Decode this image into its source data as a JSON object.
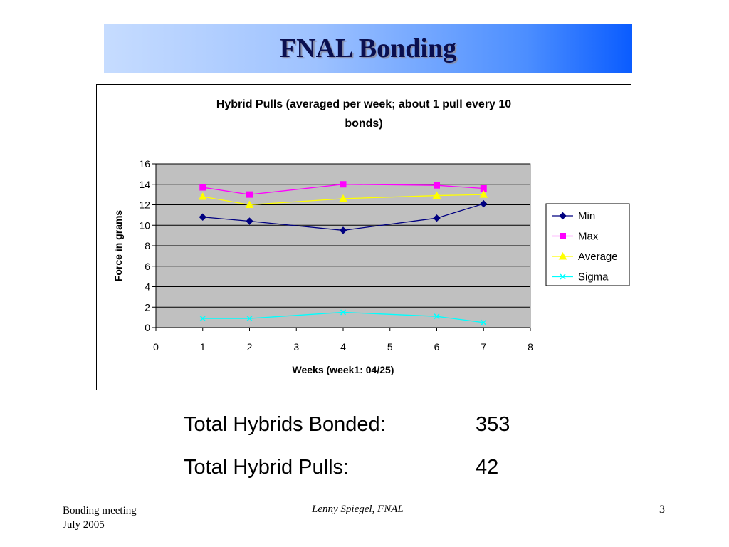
{
  "slide": {
    "title": "FNAL Bonding"
  },
  "stats": [
    {
      "label": "Total Hybrids Bonded:",
      "value": "353"
    },
    {
      "label": "Total Hybrid Pulls:",
      "value": "42"
    }
  ],
  "footer": {
    "left_line1": "Bonding meeting",
    "left_line2": "July 2005",
    "center": "Lenny Spiegel, FNAL",
    "page_number": "3"
  },
  "chart_data": {
    "type": "line",
    "title_line1": "Hybrid Pulls (averaged per week; about 1 pull every 10",
    "title_line2": "bonds)",
    "xlabel": "Weeks (week1: 04/25)",
    "ylabel": "Force in grams",
    "xlim": [
      0,
      8
    ],
    "ylim": [
      0,
      16
    ],
    "xticks": [
      0,
      1,
      2,
      3,
      4,
      5,
      6,
      7,
      8
    ],
    "yticks": [
      0,
      2,
      4,
      6,
      8,
      10,
      12,
      14,
      16
    ],
    "grid": "horizontal",
    "plot_background": "#c0c0c0",
    "legend_position": "right",
    "x": [
      1,
      2,
      4,
      6,
      7
    ],
    "series": [
      {
        "name": "Min",
        "values": [
          10.8,
          10.4,
          9.5,
          10.7,
          12.1
        ],
        "color": "#000080",
        "marker": "diamond"
      },
      {
        "name": "Max",
        "values": [
          13.7,
          13.0,
          14.0,
          13.9,
          13.6
        ],
        "color": "#ff00ff",
        "marker": "square"
      },
      {
        "name": "Average",
        "values": [
          12.8,
          12.0,
          12.6,
          12.9,
          13.0
        ],
        "color": "#ffff00",
        "marker": "triangle"
      },
      {
        "name": "Sigma",
        "values": [
          0.9,
          0.9,
          1.5,
          1.1,
          0.5
        ],
        "color": "#00ffff",
        "marker": "x"
      }
    ]
  }
}
